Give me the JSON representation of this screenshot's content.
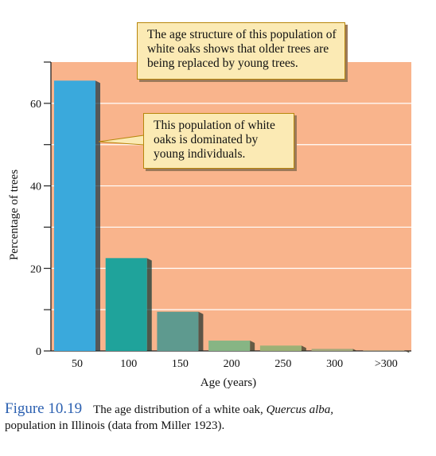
{
  "chart_data": {
    "type": "bar",
    "categories": [
      "50",
      "100",
      "150",
      "200",
      "250",
      "300",
      ">300"
    ],
    "values": [
      65.5,
      22.5,
      9.5,
      2.5,
      1.3,
      0.5,
      0.1
    ],
    "bar_colors": [
      "#3aa9dc",
      "#1fa39b",
      "#5e9a8f",
      "#87b584",
      "#9cb176",
      "#a3a87a",
      "#a3a87a"
    ],
    "xlabel": "Age (years)",
    "ylabel": "Percentage of trees",
    "ylim": [
      0,
      70
    ],
    "yticks": [
      0,
      20,
      40,
      60
    ],
    "plot_background": "#f9b48c",
    "grid": true
  },
  "annotations": {
    "top_callout": "The age structure of this population of white oaks shows that older trees are being replaced by young trees.",
    "mid_callout": "This population of white oaks is dominated by young individuals."
  },
  "caption": {
    "label": "Figure 10.19",
    "text_before": "The age distribution of a white oak,",
    "species": "Quercus alba,",
    "text_after": "population in Illinois (data from Miller 1923)."
  }
}
